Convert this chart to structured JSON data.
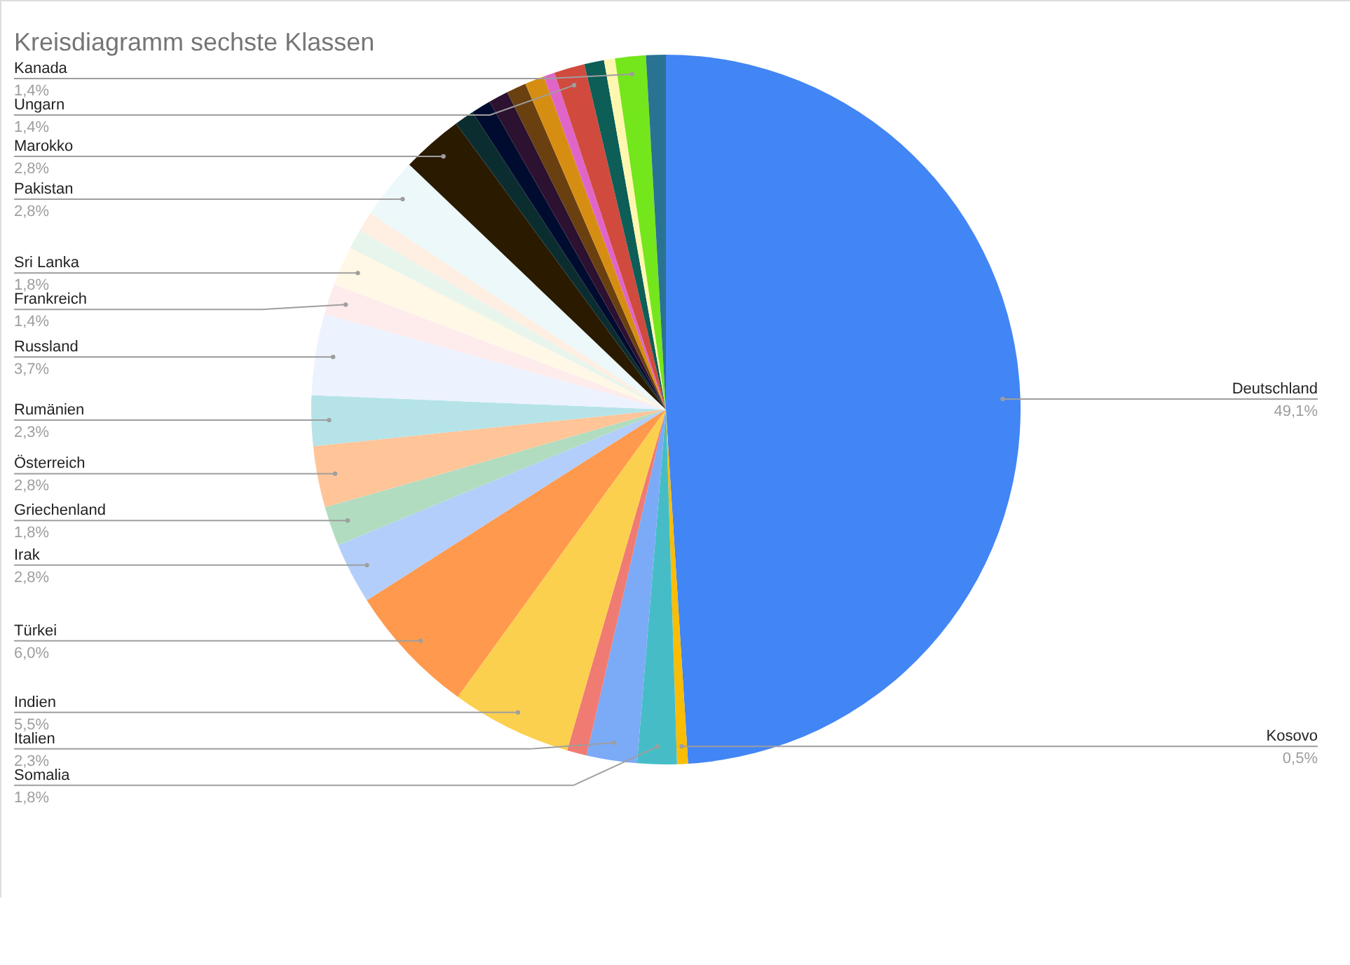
{
  "chart_data": {
    "type": "pie",
    "title": "Kreisdiagramm sechste Klassen",
    "categories": [
      "Deutschland",
      "Kosovo",
      "Somalia",
      "Italien",
      null,
      "Indien",
      "Türkei",
      "Irak",
      "Griechenland",
      "Österreich",
      "Rumänien",
      "Russland",
      "Frankreich",
      "Sri Lanka",
      null,
      null,
      "Pakistan",
      "Marokko",
      null,
      null,
      null,
      null,
      null,
      null,
      "Ungarn",
      null,
      null,
      "Kanada",
      null
    ],
    "values": [
      49.1,
      0.5,
      1.8,
      2.3,
      0.9,
      5.5,
      6.0,
      2.8,
      1.8,
      2.8,
      2.3,
      3.7,
      1.4,
      1.8,
      0.9,
      0.9,
      2.8,
      2.8,
      0.9,
      0.9,
      0.9,
      0.9,
      0.9,
      0.5,
      1.4,
      0.9,
      0.5,
      1.4,
      0.9
    ],
    "value_labels": [
      "49,1%",
      "0,5%",
      "1,8%",
      "2,3%",
      null,
      "5,5%",
      "6,0%",
      "2,8%",
      "1,8%",
      "2,8%",
      "2,3%",
      "3,7%",
      "1,4%",
      "1,8%",
      null,
      null,
      "2,8%",
      "2,8%",
      null,
      null,
      null,
      null,
      null,
      null,
      "1,4%",
      null,
      null,
      "1,4%",
      null
    ],
    "colors": [
      "#4285f4",
      "#fbbc04",
      "#46bdc6",
      "#7baaf7",
      "#f07b72",
      "#fcd04f",
      "#ff994d",
      "#b3cefb",
      "#b1dcc0",
      "#ffc599",
      "#b5e3e8",
      "#ecf2fe",
      "#fdeceb",
      "#fff8e6",
      "#e8f5ec",
      "#ffeee2",
      "#ecf8f9",
      "#2a1a00",
      "#0c2d2f",
      "#000c2f",
      "#2d1130",
      "#6b4010",
      "#d68e12",
      "#e065c8",
      "#d14a3e",
      "#0c5e57",
      "#fff7b0",
      "#74e61c",
      "#2a7291"
    ],
    "legend": false
  }
}
